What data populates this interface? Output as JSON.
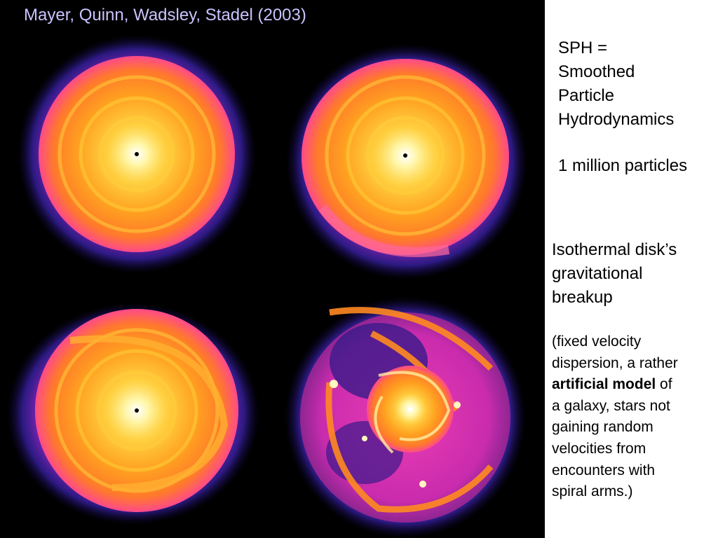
{
  "title": "Mayer, Quinn, Wadsley, Stadel (2003)",
  "sph": {
    "line1": "SPH =",
    "line2": "Smoothed",
    "line3": "Particle",
    "line4": "Hydrodynamics"
  },
  "particles": "1 million particles",
  "breakup": {
    "line1": "Isothermal disk’s",
    "line2": "gravitational",
    "line3": "breakup"
  },
  "note": {
    "line1": "(fixed velocity",
    "line2": "dispersion, a rather",
    "bold": "artificial model",
    "line3_rest": " of",
    "line4": "a galaxy, stars not",
    "line5": "gaining random",
    "line6": "velocities from",
    "line7": "encounters with",
    "line8": "spiral arms.)"
  },
  "colors": {
    "background": "#000000",
    "title_text": "#c9c3ff",
    "disk_core": "#fff27a",
    "disk_mid": "#ff9a1e",
    "disk_edge": "#ff3ec8",
    "halo": "#4a2bd8"
  }
}
